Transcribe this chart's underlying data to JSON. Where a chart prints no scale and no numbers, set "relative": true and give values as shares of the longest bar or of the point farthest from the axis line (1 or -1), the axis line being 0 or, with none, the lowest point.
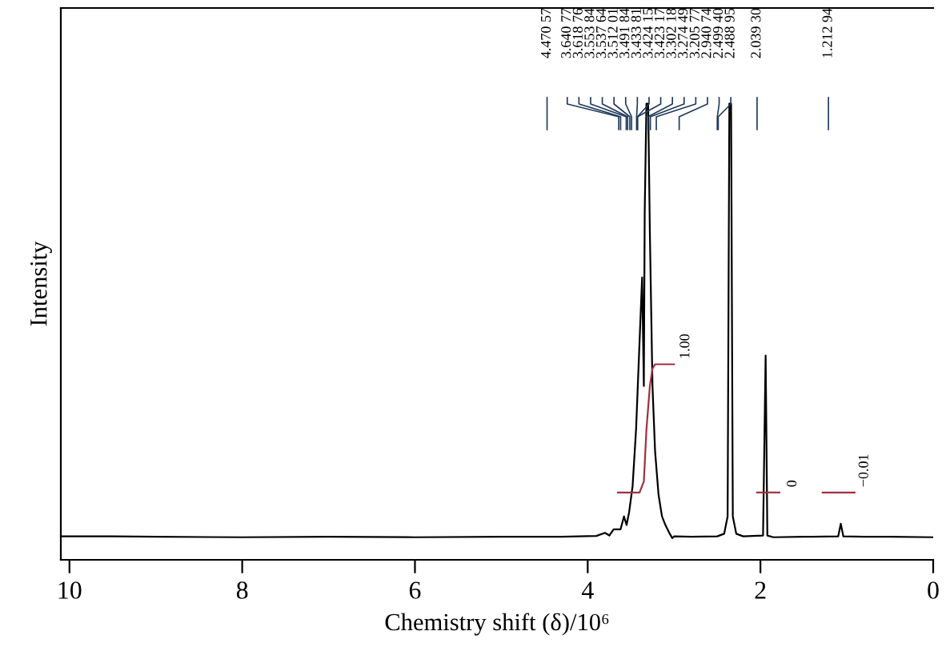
{
  "chart_data": {
    "type": "line",
    "relative": true,
    "xlabel": "Chemistry shift (δ)/10⁶",
    "ylabel": "Intensity",
    "xlim": [
      10.1,
      0
    ],
    "xticks": [
      10,
      8,
      6,
      4,
      2,
      0
    ],
    "tick_labels": "x",
    "grid": false,
    "legend": false,
    "marker": "none",
    "line_style": "solid",
    "series": [
      {
        "color": "#000000",
        "x": [
          10.1,
          9.5,
          9.0,
          8.0,
          7.0,
          6.0,
          5.0,
          4.3,
          3.9,
          3.8,
          3.75,
          3.7,
          3.62,
          3.58,
          3.55,
          3.52,
          3.48,
          3.44,
          3.4,
          3.37,
          3.35,
          3.34,
          3.32,
          3.3,
          3.28,
          3.25,
          3.22,
          3.18,
          3.14,
          3.1,
          3.05,
          3.02,
          3.0,
          2.8,
          2.5,
          2.42,
          2.38,
          2.36,
          2.34,
          2.32,
          2.28,
          2.2,
          1.97,
          1.94,
          1.92,
          1.85,
          1.5,
          1.1,
          1.07,
          1.04,
          0.8,
          0.5,
          0.0
        ],
        "values": [
          0.004,
          0.004,
          0.003,
          0.002,
          0.003,
          0.002,
          0.003,
          0.003,
          0.005,
          0.012,
          0.006,
          0.02,
          0.02,
          0.05,
          0.03,
          0.06,
          0.12,
          0.25,
          0.45,
          0.6,
          0.35,
          0.75,
          1.0,
          1.0,
          0.7,
          0.35,
          0.2,
          0.1,
          0.05,
          0.03,
          0.01,
          0.0,
          0.004,
          0.003,
          0.004,
          0.01,
          0.05,
          1.0,
          1.0,
          0.05,
          0.01,
          0.004,
          0.006,
          0.42,
          0.006,
          0.002,
          0.003,
          0.004,
          0.033,
          0.004,
          0.003,
          0.003,
          0.002
        ]
      },
      {
        "color": "#a03040",
        "x": [
          3.65,
          3.4,
          3.35,
          3.32,
          3.28,
          3.25,
          3.22,
          3.0
        ],
        "values": [
          0.105,
          0.105,
          0.13,
          0.25,
          0.35,
          0.39,
          0.4,
          0.4
        ]
      },
      {
        "color": "#a03040",
        "x": [
          2.04,
          1.78
        ],
        "values": [
          0.105,
          0.105
        ]
      },
      {
        "color": "#a03040",
        "x": [
          1.28,
          0.91
        ],
        "values": [
          0.105,
          0.105
        ]
      }
    ],
    "annotations": [
      "4.470 57",
      "3.640 77",
      "3.618 76",
      "3.553 84",
      "3.537 64",
      "3.512 01",
      "3.491 84",
      "3.433 81",
      "3.424 15",
      "3.423 17",
      "3.302 18",
      "3.274 49",
      "3.205 77",
      "2.940 74",
      "2.499 40",
      "2.488 95",
      "2.039 30",
      "1.212 94",
      {
        "text": "1.00",
        "x": 2.94,
        "y": 0.4
      },
      {
        "text": "0",
        "x": 1.7,
        "y": 0.105
      },
      {
        "text": "−0.01",
        "x": 0.87,
        "y": 0.105
      }
    ]
  }
}
